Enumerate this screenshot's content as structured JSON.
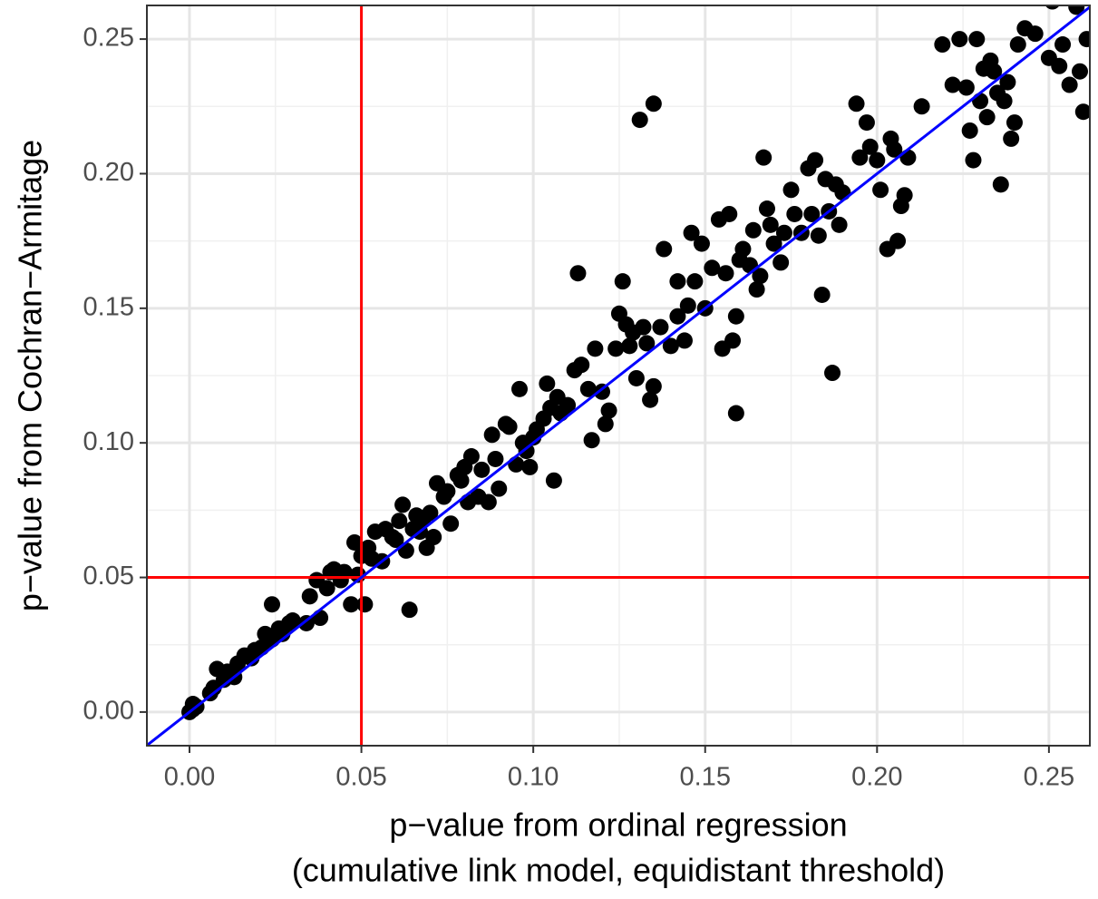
{
  "chart_data": {
    "type": "scatter",
    "xlabel": [
      "p−value from ordinal regression",
      "(cumulative link model, equidistant threshold)"
    ],
    "ylabel": "p−value from Cochran−Armitage",
    "xlim": [
      -0.0124,
      0.2619
    ],
    "ylim": [
      -0.0125,
      0.2625
    ],
    "xticks": [
      {
        "value": 0,
        "label": "0.00"
      },
      {
        "value": 0.05,
        "label": "0.05"
      },
      {
        "value": 0.1,
        "label": "0.10"
      },
      {
        "value": 0.15,
        "label": "0.15"
      },
      {
        "value": 0.2,
        "label": "0.20"
      },
      {
        "value": 0.25,
        "label": "0.25"
      }
    ],
    "yticks": [
      {
        "value": 0,
        "label": "0.00"
      },
      {
        "value": 0.05,
        "label": "0.05"
      },
      {
        "value": 0.1,
        "label": "0.10"
      },
      {
        "value": 0.15,
        "label": "0.15"
      },
      {
        "value": 0.2,
        "label": "0.20"
      },
      {
        "value": 0.25,
        "label": "0.25"
      }
    ],
    "minor_xticks": [
      0.025,
      0.075,
      0.125,
      0.175,
      0.225
    ],
    "minor_yticks": [
      0.025,
      0.075,
      0.125,
      0.175,
      0.225
    ],
    "grid": true,
    "color": "#000000",
    "hlines": [
      {
        "value": 0.05,
        "color": "#ff0000"
      }
    ],
    "vlines": [
      {
        "value": 0.05,
        "color": "#ff0000"
      }
    ],
    "ablines": [
      {
        "slope": 1,
        "intercept": 0,
        "color": "#0000ff"
      }
    ],
    "x": [
      0.0,
      0.001,
      0.002,
      0.001,
      0.006,
      0.007,
      0.008,
      0.01,
      0.011,
      0.013,
      0.014,
      0.016,
      0.018,
      0.019,
      0.021,
      0.022,
      0.024,
      0.024,
      0.026,
      0.027,
      0.029,
      0.03,
      0.034,
      0.035,
      0.037,
      0.038,
      0.04,
      0.041,
      0.042,
      0.044,
      0.045,
      0.047,
      0.048,
      0.049,
      0.05,
      0.051,
      0.052,
      0.053,
      0.054,
      0.056,
      0.057,
      0.059,
      0.06,
      0.061,
      0.062,
      0.063,
      0.064,
      0.065,
      0.066,
      0.067,
      0.068,
      0.069,
      0.07,
      0.071,
      0.072,
      0.074,
      0.075,
      0.076,
      0.078,
      0.079,
      0.08,
      0.081,
      0.082,
      0.084,
      0.085,
      0.087,
      0.088,
      0.089,
      0.09,
      0.092,
      0.093,
      0.095,
      0.096,
      0.097,
      0.098,
      0.099,
      0.1,
      0.101,
      0.103,
      0.104,
      0.105,
      0.106,
      0.107,
      0.108,
      0.11,
      0.112,
      0.113,
      0.114,
      0.116,
      0.117,
      0.118,
      0.12,
      0.121,
      0.122,
      0.124,
      0.125,
      0.126,
      0.127,
      0.128,
      0.129,
      0.13,
      0.131,
      0.132,
      0.133,
      0.134,
      0.135,
      0.135,
      0.137,
      0.138,
      0.14,
      0.142,
      0.142,
      0.144,
      0.145,
      0.146,
      0.147,
      0.149,
      0.15,
      0.152,
      0.154,
      0.155,
      0.156,
      0.157,
      0.158,
      0.159,
      0.159,
      0.16,
      0.161,
      0.163,
      0.164,
      0.165,
      0.166,
      0.167,
      0.168,
      0.169,
      0.17,
      0.172,
      0.173,
      0.175,
      0.176,
      0.178,
      0.18,
      0.181,
      0.182,
      0.183,
      0.184,
      0.185,
      0.186,
      0.187,
      0.188,
      0.189,
      0.19,
      0.194,
      0.195,
      0.197,
      0.198,
      0.2,
      0.201,
      0.203,
      0.204,
      0.205,
      0.206,
      0.207,
      0.208,
      0.209,
      0.213,
      0.219,
      0.222,
      0.224,
      0.226,
      0.227,
      0.228,
      0.229,
      0.23,
      0.231,
      0.232,
      0.233,
      0.234,
      0.235,
      0.236,
      0.237,
      0.238,
      0.239,
      0.24,
      0.241,
      0.243,
      0.246,
      0.25,
      0.251,
      0.253,
      0.254,
      0.256,
      0.258,
      0.259,
      0.26,
      0.261
    ],
    "y": [
      0.0,
      0.001,
      0.002,
      0.003,
      0.007,
      0.009,
      0.016,
      0.012,
      0.015,
      0.013,
      0.018,
      0.021,
      0.02,
      0.023,
      0.024,
      0.029,
      0.027,
      0.04,
      0.031,
      0.029,
      0.033,
      0.034,
      0.033,
      0.043,
      0.049,
      0.035,
      0.046,
      0.052,
      0.053,
      0.049,
      0.052,
      0.04,
      0.063,
      0.051,
      0.058,
      0.04,
      0.061,
      0.057,
      0.067,
      0.056,
      0.068,
      0.065,
      0.064,
      0.071,
      0.077,
      0.06,
      0.038,
      0.068,
      0.073,
      0.067,
      0.072,
      0.061,
      0.074,
      0.065,
      0.085,
      0.08,
      0.082,
      0.07,
      0.088,
      0.086,
      0.091,
      0.078,
      0.095,
      0.08,
      0.09,
      0.078,
      0.103,
      0.094,
      0.083,
      0.107,
      0.106,
      0.092,
      0.12,
      0.1,
      0.097,
      0.091,
      0.102,
      0.105,
      0.109,
      0.122,
      0.113,
      0.086,
      0.117,
      0.111,
      0.114,
      0.127,
      0.163,
      0.129,
      0.12,
      0.101,
      0.135,
      0.119,
      0.107,
      0.112,
      0.135,
      0.148,
      0.16,
      0.144,
      0.136,
      0.141,
      0.124,
      0.22,
      0.143,
      0.137,
      0.116,
      0.121,
      0.226,
      0.143,
      0.172,
      0.136,
      0.147,
      0.16,
      0.138,
      0.151,
      0.178,
      0.16,
      0.174,
      0.15,
      0.165,
      0.183,
      0.135,
      0.163,
      0.185,
      0.138,
      0.111,
      0.147,
      0.168,
      0.172,
      0.166,
      0.179,
      0.157,
      0.162,
      0.206,
      0.187,
      0.181,
      0.174,
      0.167,
      0.178,
      0.194,
      0.185,
      0.178,
      0.202,
      0.185,
      0.205,
      0.177,
      0.155,
      0.198,
      0.186,
      0.126,
      0.196,
      0.181,
      0.193,
      0.226,
      0.206,
      0.219,
      0.21,
      0.205,
      0.194,
      0.172,
      0.213,
      0.209,
      0.175,
      0.188,
      0.192,
      0.206,
      0.225,
      0.248,
      0.233,
      0.25,
      0.232,
      0.216,
      0.205,
      0.25,
      0.227,
      0.239,
      0.221,
      0.242,
      0.238,
      0.23,
      0.196,
      0.227,
      0.234,
      0.213,
      0.219,
      0.248,
      0.254,
      0.252,
      0.243,
      0.264,
      0.24,
      0.248,
      0.233,
      0.262,
      0.238,
      0.223,
      0.25
    ]
  }
}
